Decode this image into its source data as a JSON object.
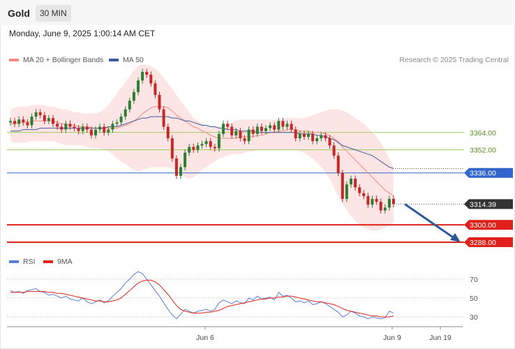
{
  "header": {
    "title": "Gold",
    "timeframe": "30 MIN"
  },
  "date_label": "Monday, June 9, 2025 1:00:14 AM CET",
  "credit": "Research © 2025 Trading Central",
  "colors": {
    "ma20": "#f28b82",
    "band": "#fde2e2",
    "ma50": "#3d5a99",
    "resistance": "#9acd5a",
    "pivot": "#3366cc",
    "support": "#e0201a",
    "candle_up": "#2e7d32",
    "candle_down": "#c62828",
    "arrow": "#2b5a96",
    "rsi": "#5b7fd6",
    "rsi_ma": "#e0201a",
    "price_tag": "#333333"
  },
  "chart_data": [
    {
      "type": "candlestick",
      "title": "Gold",
      "timeframe": "30 MIN",
      "legend": [
        "MA 20 + Bollinger Bands",
        "MA 50"
      ],
      "legend_placement": "top-left",
      "ylim": [
        3275,
        3405
      ],
      "x_ticks": [
        "Jun 6",
        "Jun 9",
        "Jun 19"
      ],
      "current_price": 3314.39,
      "levels": [
        {
          "label": "3364.00",
          "value": 3364.0,
          "kind": "resistance"
        },
        {
          "label": "3352.00",
          "value": 3352.0,
          "kind": "resistance"
        },
        {
          "label": "3336.00",
          "value": 3336.0,
          "kind": "pivot"
        },
        {
          "label": "3300.00",
          "value": 3300.0,
          "kind": "support"
        },
        {
          "label": "3288.00",
          "value": 3288.0,
          "kind": "support"
        }
      ],
      "price_label": "3314.39",
      "close": [
        3372,
        3370,
        3373,
        3371,
        3369,
        3375,
        3378,
        3376,
        3372,
        3374,
        3370,
        3368,
        3366,
        3370,
        3368,
        3367,
        3365,
        3368,
        3366,
        3362,
        3366,
        3368,
        3364,
        3366,
        3370,
        3371,
        3375,
        3380,
        3386,
        3392,
        3400,
        3406,
        3404,
        3398,
        3390,
        3380,
        3368,
        3360,
        3346,
        3334,
        3340,
        3350,
        3354,
        3352,
        3355,
        3356,
        3358,
        3354,
        3353,
        3363,
        3370,
        3368,
        3362,
        3365,
        3360,
        3358,
        3366,
        3363,
        3368,
        3365,
        3367,
        3369,
        3366,
        3372,
        3368,
        3370,
        3366,
        3360,
        3363,
        3361,
        3363,
        3358,
        3360,
        3362,
        3360,
        3355,
        3348,
        3336,
        3318,
        3328,
        3332,
        3326,
        3322,
        3320,
        3314,
        3318,
        3316,
        3310,
        3312,
        3318,
        3314.39
      ],
      "ma20": [
        3370,
        3370,
        3371,
        3371,
        3371,
        3372,
        3372,
        3372,
        3372,
        3372,
        3372,
        3371,
        3370,
        3370,
        3369,
        3369,
        3368,
        3368,
        3368,
        3367,
        3367,
        3367,
        3367,
        3367,
        3367,
        3367,
        3368,
        3369,
        3370,
        3372,
        3374,
        3377,
        3379,
        3381,
        3382,
        3382,
        3382,
        3381,
        3379,
        3376,
        3374,
        3372,
        3370,
        3368,
        3367,
        3365,
        3364,
        3362,
        3361,
        3360,
        3360,
        3360,
        3360,
        3360,
        3361,
        3361,
        3361,
        3361,
        3362,
        3362,
        3363,
        3364,
        3364,
        3365,
        3365,
        3366,
        3366,
        3366,
        3365,
        3365,
        3365,
        3364,
        3364,
        3364,
        3363,
        3362,
        3360,
        3358,
        3354,
        3351,
        3348,
        3345,
        3342,
        3339,
        3336,
        3333,
        3330,
        3327,
        3324,
        3322,
        3320
      ],
      "ma50": [
        3365,
        3365,
        3365,
        3366,
        3366,
        3366,
        3366,
        3367,
        3367,
        3367,
        3367,
        3367,
        3367,
        3367,
        3367,
        3367,
        3367,
        3367,
        3367,
        3367,
        3367,
        3367,
        3367,
        3368,
        3368,
        3368,
        3369,
        3370,
        3371,
        3372,
        3373,
        3374,
        3374,
        3375,
        3375,
        3375,
        3375,
        3375,
        3374,
        3374,
        3373,
        3372,
        3372,
        3371,
        3370,
        3369,
        3369,
        3368,
        3368,
        3367,
        3367,
        3366,
        3366,
        3366,
        3365,
        3365,
        3365,
        3365,
        3364,
        3364,
        3364,
        3364,
        3364,
        3364,
        3364,
        3364,
        3364,
        3364,
        3363,
        3363,
        3363,
        3363,
        3362,
        3362,
        3361,
        3360,
        3359,
        3357,
        3355,
        3354,
        3353,
        3352,
        3351,
        3350,
        3349,
        3348,
        3346,
        3344,
        3342,
        3340,
        3339
      ],
      "band_upper": [
        3380,
        3381,
        3382,
        3382,
        3382,
        3383,
        3383,
        3383,
        3383,
        3382,
        3382,
        3381,
        3380,
        3380,
        3379,
        3378,
        3378,
        3377,
        3377,
        3377,
        3377,
        3378,
        3380,
        3383,
        3387,
        3391,
        3395,
        3399,
        3403,
        3407,
        3410,
        3411,
        3411,
        3410,
        3408,
        3405,
        3402,
        3398,
        3394,
        3390,
        3386,
        3382,
        3378,
        3374,
        3372,
        3370,
        3369,
        3368,
        3368,
        3368,
        3369,
        3370,
        3371,
        3372,
        3373,
        3373,
        3373,
        3373,
        3373,
        3373,
        3373,
        3373,
        3373,
        3373,
        3373,
        3374,
        3374,
        3374,
        3374,
        3374,
        3375,
        3376,
        3377,
        3378,
        3379,
        3380,
        3380,
        3380,
        3379,
        3378,
        3376,
        3374,
        3372,
        3370,
        3367,
        3364,
        3361,
        3357,
        3352,
        3346,
        3340
      ],
      "band_lower": [
        3358,
        3357,
        3357,
        3357,
        3357,
        3358,
        3358,
        3358,
        3358,
        3358,
        3358,
        3357,
        3356,
        3355,
        3355,
        3355,
        3355,
        3355,
        3354,
        3353,
        3353,
        3353,
        3352,
        3351,
        3349,
        3346,
        3344,
        3342,
        3340,
        3338,
        3337,
        3338,
        3339,
        3340,
        3340,
        3340,
        3340,
        3340,
        3339,
        3337,
        3335,
        3333,
        3332,
        3333,
        3335,
        3338,
        3340,
        3342,
        3344,
        3346,
        3347,
        3348,
        3349,
        3349,
        3349,
        3350,
        3351,
        3351,
        3352,
        3352,
        3352,
        3352,
        3352,
        3352,
        3352,
        3352,
        3352,
        3352,
        3351,
        3350,
        3348,
        3346,
        3343,
        3340,
        3336,
        3332,
        3326,
        3320,
        3315,
        3310,
        3306,
        3303,
        3300,
        3298,
        3297,
        3296,
        3296,
        3297,
        3298,
        3300,
        3302
      ],
      "projection": {
        "from": 3314.39,
        "to": 3289
      }
    },
    {
      "type": "line",
      "title": "RSI",
      "legend": [
        "RSI",
        "9MA"
      ],
      "ylim": [
        20,
        80
      ],
      "y_ticks": [
        "70",
        "50",
        "30"
      ],
      "y_tick_values": [
        70,
        50,
        30
      ],
      "rsi": [
        58,
        56,
        57,
        55,
        58,
        59,
        60,
        57,
        56,
        53,
        54,
        52,
        50,
        52,
        49,
        48,
        47,
        50,
        46,
        44,
        46,
        48,
        45,
        47,
        52,
        56,
        60,
        66,
        70,
        75,
        78,
        76,
        70,
        64,
        58,
        52,
        45,
        38,
        32,
        28,
        33,
        38,
        36,
        34,
        36,
        37,
        38,
        36,
        38,
        45,
        48,
        46,
        44,
        47,
        45,
        44,
        50,
        48,
        52,
        49,
        50,
        51,
        48,
        56,
        52,
        53,
        50,
        46,
        47,
        45,
        47,
        43,
        44,
        46,
        44,
        41,
        38,
        35,
        30,
        32,
        36,
        34,
        31,
        30,
        28,
        30,
        29,
        28,
        29,
        36,
        34
      ],
      "rsi_ma": [
        56,
        56,
        56,
        56,
        57,
        57,
        57,
        57,
        57,
        56,
        56,
        55,
        55,
        54,
        53,
        52,
        51,
        50,
        49,
        48,
        47,
        47,
        46,
        46,
        47,
        48,
        50,
        54,
        58,
        62,
        66,
        68,
        69,
        69,
        67,
        64,
        59,
        54,
        48,
        42,
        38,
        36,
        35,
        34,
        34,
        34,
        35,
        35,
        36,
        37,
        39,
        41,
        42,
        43,
        44,
        45,
        46,
        47,
        48,
        49,
        49,
        50,
        50,
        51,
        51,
        52,
        52,
        51,
        50,
        49,
        48,
        47,
        46,
        46,
        45,
        44,
        43,
        41,
        39,
        37,
        36,
        35,
        34,
        33,
        32,
        31,
        31,
        30,
        30,
        30,
        31
      ]
    }
  ]
}
